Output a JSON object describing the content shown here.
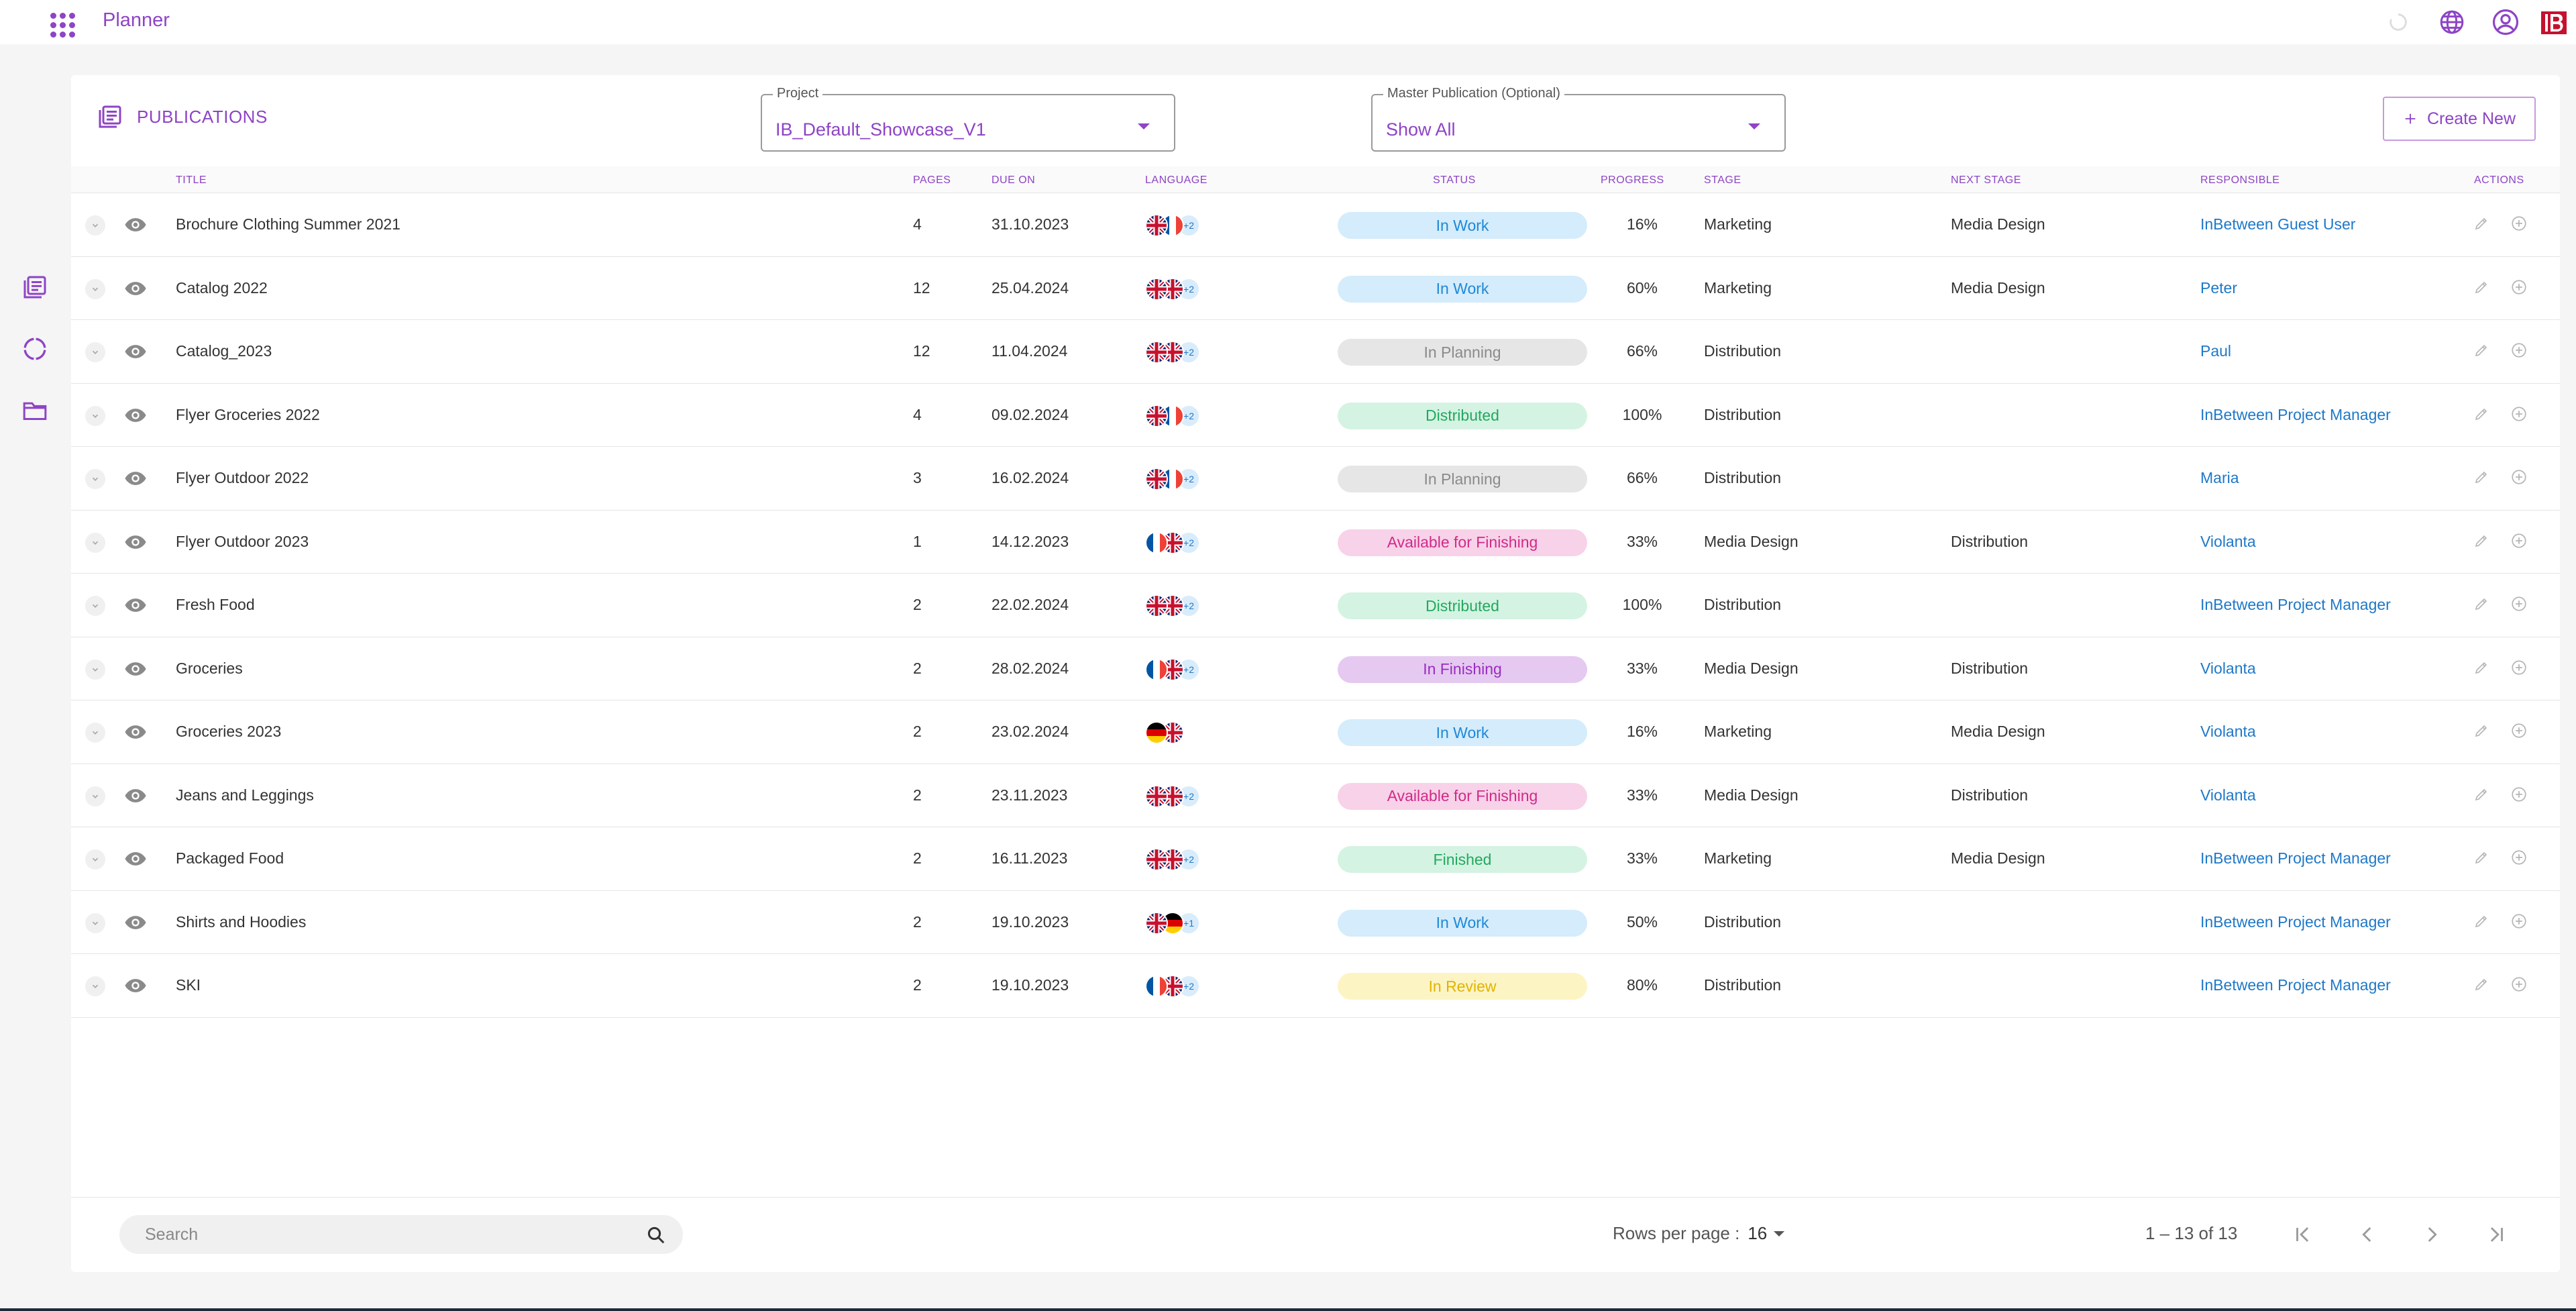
{
  "app": {
    "title": "Planner",
    "brand": "IB"
  },
  "colors": {
    "accent": "#8e44c6",
    "link": "#1e78c8"
  },
  "header": {
    "section_title": "PUBLICATIONS",
    "project": {
      "label": "Project",
      "value": "IB_Default_Showcase_V1"
    },
    "master": {
      "label": "Master Publication (Optional)",
      "value": "Show All"
    },
    "create_label": "Create New"
  },
  "columns": {
    "title": "TITLE",
    "pages": "PAGES",
    "due": "DUE ON",
    "language": "LANGUAGE",
    "status": "STATUS",
    "progress": "PROGRESS",
    "stage": "STAGE",
    "next_stage": "NEXT STAGE",
    "responsible": "RESPONSIBLE",
    "actions": "ACTIONS"
  },
  "rows": [
    {
      "title": "Brochure Clothing Summer 2021",
      "pages": "4",
      "due": "31.10.2023",
      "flags": [
        "uk",
        "fr"
      ],
      "more": "+2",
      "status": "In Work",
      "status_kind": "inwork",
      "progress": "16%",
      "stage": "Marketing",
      "next_stage": "Media Design",
      "responsible": "InBetween Guest User"
    },
    {
      "title": "Catalog 2022",
      "pages": "12",
      "due": "25.04.2024",
      "flags": [
        "uk",
        "uk"
      ],
      "more": "+2",
      "status": "In Work",
      "status_kind": "inwork",
      "progress": "60%",
      "stage": "Marketing",
      "next_stage": "Media Design",
      "responsible": "Peter"
    },
    {
      "title": "Catalog_2023",
      "pages": "12",
      "due": "11.04.2024",
      "flags": [
        "uk",
        "uk"
      ],
      "more": "+2",
      "status": "In Planning",
      "status_kind": "planning",
      "progress": "66%",
      "stage": "Distribution",
      "next_stage": "",
      "responsible": "Paul"
    },
    {
      "title": "Flyer Groceries 2022",
      "pages": "4",
      "due": "09.02.2024",
      "flags": [
        "uk",
        "fr"
      ],
      "more": "+2",
      "status": "Distributed",
      "status_kind": "distributed",
      "progress": "100%",
      "stage": "Distribution",
      "next_stage": "",
      "responsible": "InBetween Project Manager"
    },
    {
      "title": "Flyer Outdoor 2022",
      "pages": "3",
      "due": "16.02.2024",
      "flags": [
        "uk",
        "fr"
      ],
      "more": "+2",
      "status": "In Planning",
      "status_kind": "planning",
      "progress": "66%",
      "stage": "Distribution",
      "next_stage": "",
      "responsible": "Maria"
    },
    {
      "title": "Flyer Outdoor 2023",
      "pages": "1",
      "due": "14.12.2023",
      "flags": [
        "fr",
        "uk"
      ],
      "more": "+2",
      "status": "Available for Finishing",
      "status_kind": "avail",
      "progress": "33%",
      "stage": "Media Design",
      "next_stage": "Distribution",
      "responsible": "Violanta"
    },
    {
      "title": "Fresh Food",
      "pages": "2",
      "due": "22.02.2024",
      "flags": [
        "uk",
        "uk"
      ],
      "more": "+2",
      "status": "Distributed",
      "status_kind": "distributed",
      "progress": "100%",
      "stage": "Distribution",
      "next_stage": "",
      "responsible": "InBetween Project Manager"
    },
    {
      "title": "Groceries",
      "pages": "2",
      "due": "28.02.2024",
      "flags": [
        "fr",
        "uk"
      ],
      "more": "+2",
      "status": "In Finishing",
      "status_kind": "finishing",
      "progress": "33%",
      "stage": "Media Design",
      "next_stage": "Distribution",
      "responsible": "Violanta"
    },
    {
      "title": "Groceries 2023",
      "pages": "2",
      "due": "23.02.2024",
      "flags": [
        "de",
        "uk"
      ],
      "more": "",
      "status": "In Work",
      "status_kind": "inwork",
      "progress": "16%",
      "stage": "Marketing",
      "next_stage": "Media Design",
      "responsible": "Violanta"
    },
    {
      "title": "Jeans and Leggings",
      "pages": "2",
      "due": "23.11.2023",
      "flags": [
        "uk",
        "uk"
      ],
      "more": "+2",
      "status": "Available for Finishing",
      "status_kind": "avail",
      "progress": "33%",
      "stage": "Media Design",
      "next_stage": "Distribution",
      "responsible": "Violanta"
    },
    {
      "title": "Packaged Food",
      "pages": "2",
      "due": "16.11.2023",
      "flags": [
        "uk",
        "uk"
      ],
      "more": "+2",
      "status": "Finished",
      "status_kind": "finished",
      "progress": "33%",
      "stage": "Marketing",
      "next_stage": "Media Design",
      "responsible": "InBetween Project Manager"
    },
    {
      "title": "Shirts and Hoodies",
      "pages": "2",
      "due": "19.10.2023",
      "flags": [
        "uk",
        "de"
      ],
      "more": "+1",
      "status": "In Work",
      "status_kind": "inwork",
      "progress": "50%",
      "stage": "Distribution",
      "next_stage": "",
      "responsible": "InBetween Project Manager"
    },
    {
      "title": "SKI",
      "pages": "2",
      "due": "19.10.2023",
      "flags": [
        "fr",
        "uk"
      ],
      "more": "+2",
      "status": "In Review",
      "status_kind": "review",
      "progress": "80%",
      "stage": "Distribution",
      "next_stage": "",
      "responsible": "InBetween Project Manager"
    }
  ],
  "footer": {
    "search_placeholder": "Search",
    "rows_per_page_label": "Rows per page :",
    "rows_per_page_value": "16",
    "range": "1 – 13 of 13"
  }
}
